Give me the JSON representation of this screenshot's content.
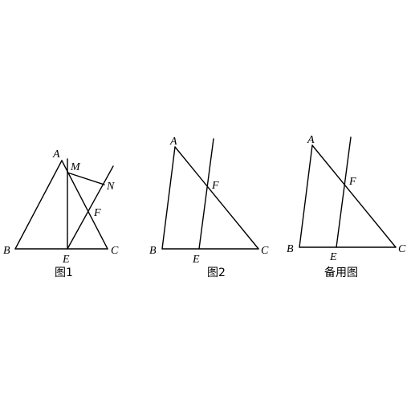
{
  "figures": [
    {
      "id": "fig1",
      "caption": "图1",
      "points": {
        "A": "A",
        "B": "B",
        "C": "C",
        "E": "E",
        "F": "F",
        "M": "M",
        "N": "N"
      }
    },
    {
      "id": "fig2",
      "caption": "图2",
      "points": {
        "A": "A",
        "B": "B",
        "C": "C",
        "E": "E",
        "F": "F"
      }
    },
    {
      "id": "fig3",
      "caption": "备用图",
      "points": {
        "A": "A",
        "B": "B",
        "C": "C",
        "E": "E",
        "F": "F"
      }
    }
  ]
}
